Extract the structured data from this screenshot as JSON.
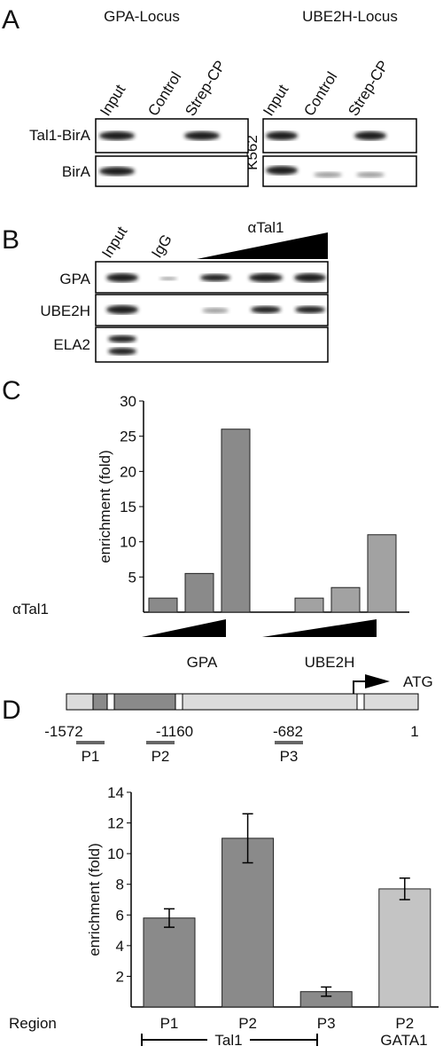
{
  "panels": {
    "A": {
      "label": "A",
      "loci": [
        "GPA-Locus",
        "UBE2H-Locus"
      ],
      "lanes": [
        "Input",
        "Control",
        "Strep-CP"
      ],
      "rows": [
        "Tal1-BirA",
        "BirA"
      ],
      "cell_line": "K562"
    },
    "B": {
      "label": "B",
      "lanes": [
        "Input",
        "IgG"
      ],
      "gradient_label": "αTal1",
      "rows": [
        "GPA",
        "UBE2H",
        "ELA2"
      ]
    },
    "C": {
      "label": "C"
    },
    "D": {
      "label": "D",
      "start_codon": "ATG",
      "positions": [
        "-1572",
        "-1160",
        "-682",
        "1"
      ],
      "primers": [
        "P1",
        "P2",
        "P3"
      ]
    }
  },
  "chart_data": [
    {
      "type": "bar",
      "y_label": "enrichment (fold)",
      "x_label": "αTal1",
      "groups": [
        "GPA",
        "UBE2H"
      ],
      "categories": [
        null,
        null,
        null,
        null,
        null,
        null
      ],
      "values": [
        2,
        5.5,
        26,
        2,
        3.5,
        11
      ],
      "colors": [
        "#8a8a8a",
        "#8a8a8a",
        "#8a8a8a",
        "#a2a2a2",
        "#a2a2a2",
        "#a2a2a2"
      ],
      "ylim": [
        0,
        30
      ],
      "yticks": [
        5,
        10,
        15,
        20,
        25,
        30
      ]
    },
    {
      "type": "bar",
      "y_label": "enrichment (fold)",
      "x_label": "Region",
      "categories": [
        "P1",
        "P2",
        "P3",
        "P2"
      ],
      "values": [
        5.8,
        11,
        1,
        7.7
      ],
      "errors": [
        0.6,
        1.6,
        0.3,
        0.7
      ],
      "colors": [
        "#8a8a8a",
        "#8a8a8a",
        "#8a8a8a",
        "#c4c4c4"
      ],
      "ylim": [
        0,
        14
      ],
      "yticks": [
        2,
        4,
        6,
        8,
        10,
        12,
        14
      ],
      "bar_groups": [
        "Tal1",
        "GATA1"
      ]
    }
  ]
}
